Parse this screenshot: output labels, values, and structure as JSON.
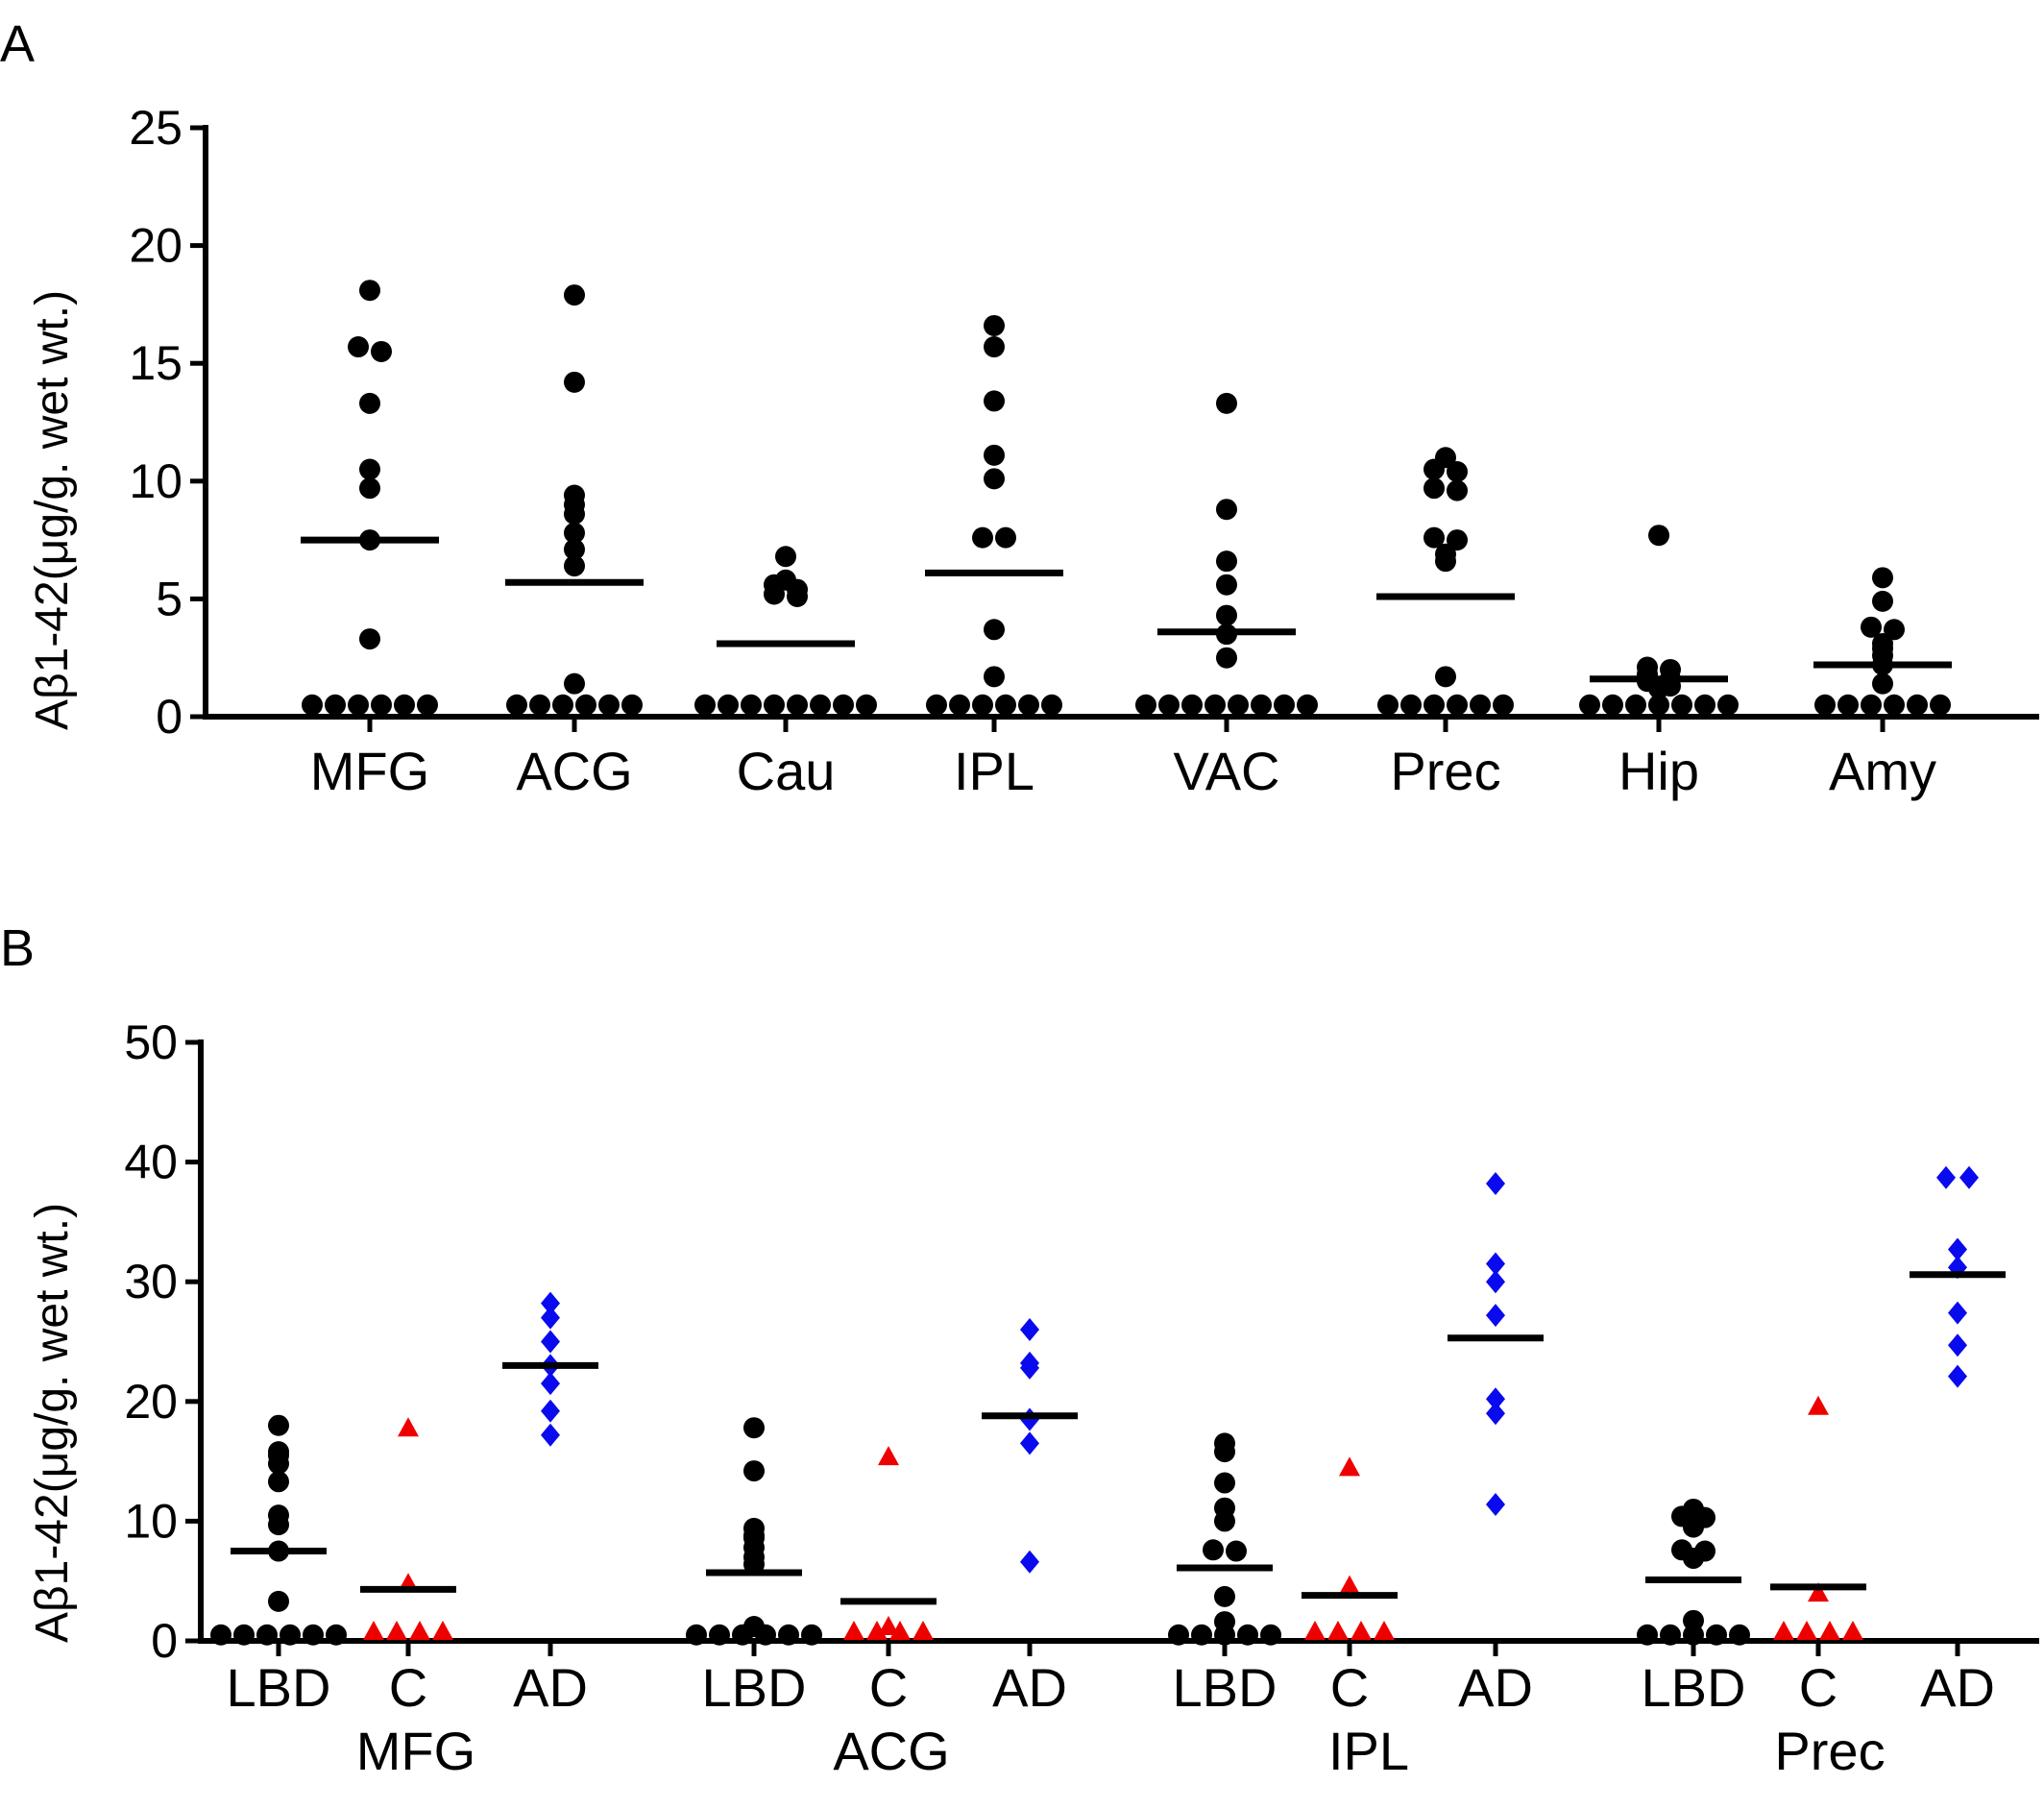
{
  "panels": [
    {
      "letter": "A",
      "ylabel": "Aβ1-42(μg/g. wet wt.)",
      "chart_data": {
        "type": "scatter",
        "ylim": [
          0,
          25
        ],
        "yticks": [
          "0",
          "5",
          "10",
          "15",
          "20",
          "25"
        ],
        "categories": [
          "MFG",
          "ACG",
          "Cau",
          "IPL",
          "VAC",
          "Prec",
          "Hip",
          "Amy"
        ],
        "series": [
          {
            "color": "#000000",
            "marker": "circle",
            "values": [
              [
                18.1,
                15.7,
                15.5,
                13.3,
                10.5,
                9.7,
                7.5,
                3.3,
                0.5,
                0.5,
                0.5,
                0.5,
                0.5,
                0.5
              ],
              [
                17.9,
                14.2,
                9.4,
                9.0,
                8.6,
                7.8,
                7.1,
                6.4,
                1.4,
                0.5,
                0.5,
                0.5,
                0.5,
                0.5,
                0.5
              ],
              [
                6.8,
                5.8,
                5.6,
                5.4,
                5.2,
                5.1,
                0.5,
                0.5,
                0.5,
                0.5,
                0.5,
                0.5,
                0.5,
                0.5
              ],
              [
                16.6,
                15.7,
                13.4,
                11.1,
                10.1,
                7.6,
                7.6,
                3.7,
                1.7,
                0.5,
                0.5,
                0.5,
                0.5,
                0.5,
                0.5
              ],
              [
                13.3,
                8.8,
                6.6,
                5.6,
                4.3,
                3.5,
                2.5,
                0.5,
                0.5,
                0.5,
                0.5,
                0.5,
                0.5,
                0.5,
                0.5
              ],
              [
                11.0,
                10.5,
                10.4,
                9.7,
                9.6,
                7.6,
                7.5,
                6.9,
                6.6,
                1.7,
                0.5,
                0.5,
                0.5,
                0.5,
                0.5,
                0.5
              ],
              [
                7.7,
                2.1,
                2.0,
                1.8,
                1.6,
                1.5,
                1.3,
                1.2,
                0.5,
                0.5,
                0.5,
                0.5,
                0.5,
                0.5,
                0.5
              ],
              [
                5.9,
                4.9,
                3.8,
                3.7,
                3.1,
                2.9,
                2.6,
                2.2,
                1.4,
                0.5,
                0.5,
                0.5,
                0.5,
                0.5,
                0.5
              ]
            ]
          }
        ],
        "medians": [
          7.5,
          5.7,
          3.1,
          6.1,
          3.6,
          5.1,
          1.6,
          2.2
        ]
      }
    },
    {
      "letter": "B",
      "ylabel": "Aβ1-42(μg/g. wet wt.)",
      "chart_data": {
        "type": "scatter",
        "ylim": [
          0,
          50
        ],
        "yticks": [
          "0",
          "10",
          "20",
          "30",
          "40",
          "50"
        ],
        "groups": [
          "MFG",
          "ACG",
          "IPL",
          "Prec"
        ],
        "subcategories": [
          "LBD",
          "C",
          "AD"
        ],
        "series": [
          {
            "name": "LBD",
            "color": "#000000",
            "marker": "circle",
            "values": [
              [
                18.0,
                15.8,
                15.5,
                14.8,
                13.3,
                10.5,
                9.7,
                7.5,
                3.3,
                0.5,
                0.5,
                0.5,
                0.5,
                0.5,
                0.5
              ],
              [
                17.8,
                14.2,
                9.4,
                8.8,
                8.6,
                7.8,
                7.0,
                6.4,
                1.2,
                0.5,
                0.5,
                0.5,
                0.5,
                0.5,
                0.5
              ],
              [
                16.5,
                15.8,
                13.2,
                11.1,
                10.0,
                7.6,
                7.5,
                3.7,
                1.6,
                0.5,
                0.5,
                0.5,
                0.5,
                0.5
              ],
              [
                11.0,
                10.4,
                10.3,
                9.8,
                9.5,
                7.6,
                7.5,
                6.9,
                1.7,
                0.5,
                0.5,
                0.5,
                0.5,
                0.5
              ]
            ]
          },
          {
            "name": "C",
            "color": "#ee0000",
            "marker": "triangle",
            "values": [
              [
                17.8,
                4.8,
                0.8,
                0.8,
                0.8,
                0.8
              ],
              [
                15.4,
                1.2,
                0.8,
                0.8,
                0.8,
                0.8
              ],
              [
                14.5,
                4.6,
                0.8,
                0.8,
                0.8,
                0.8
              ],
              [
                19.6,
                4.0,
                0.8,
                0.8,
                0.8,
                0.8
              ]
            ]
          },
          {
            "name": "AD",
            "color": "#0a0aee",
            "marker": "diamond",
            "values": [
              [
                28.2,
                27.0,
                25.0,
                23.0,
                21.5,
                19.2,
                17.2
              ],
              [
                26.0,
                23.2,
                22.8,
                18.5,
                16.5,
                6.6
              ],
              [
                38.2,
                31.5,
                30.0,
                27.2,
                20.2,
                19.0,
                11.4
              ],
              [
                38.7,
                38.7,
                32.7,
                31.2,
                27.4,
                24.7,
                22.1
              ]
            ]
          }
        ],
        "medians": [
          [
            7.5,
            4.3,
            23.0
          ],
          [
            5.7,
            3.3,
            18.8
          ],
          [
            6.1,
            3.8,
            25.3
          ],
          [
            5.1,
            4.5,
            30.6
          ]
        ]
      }
    }
  ]
}
